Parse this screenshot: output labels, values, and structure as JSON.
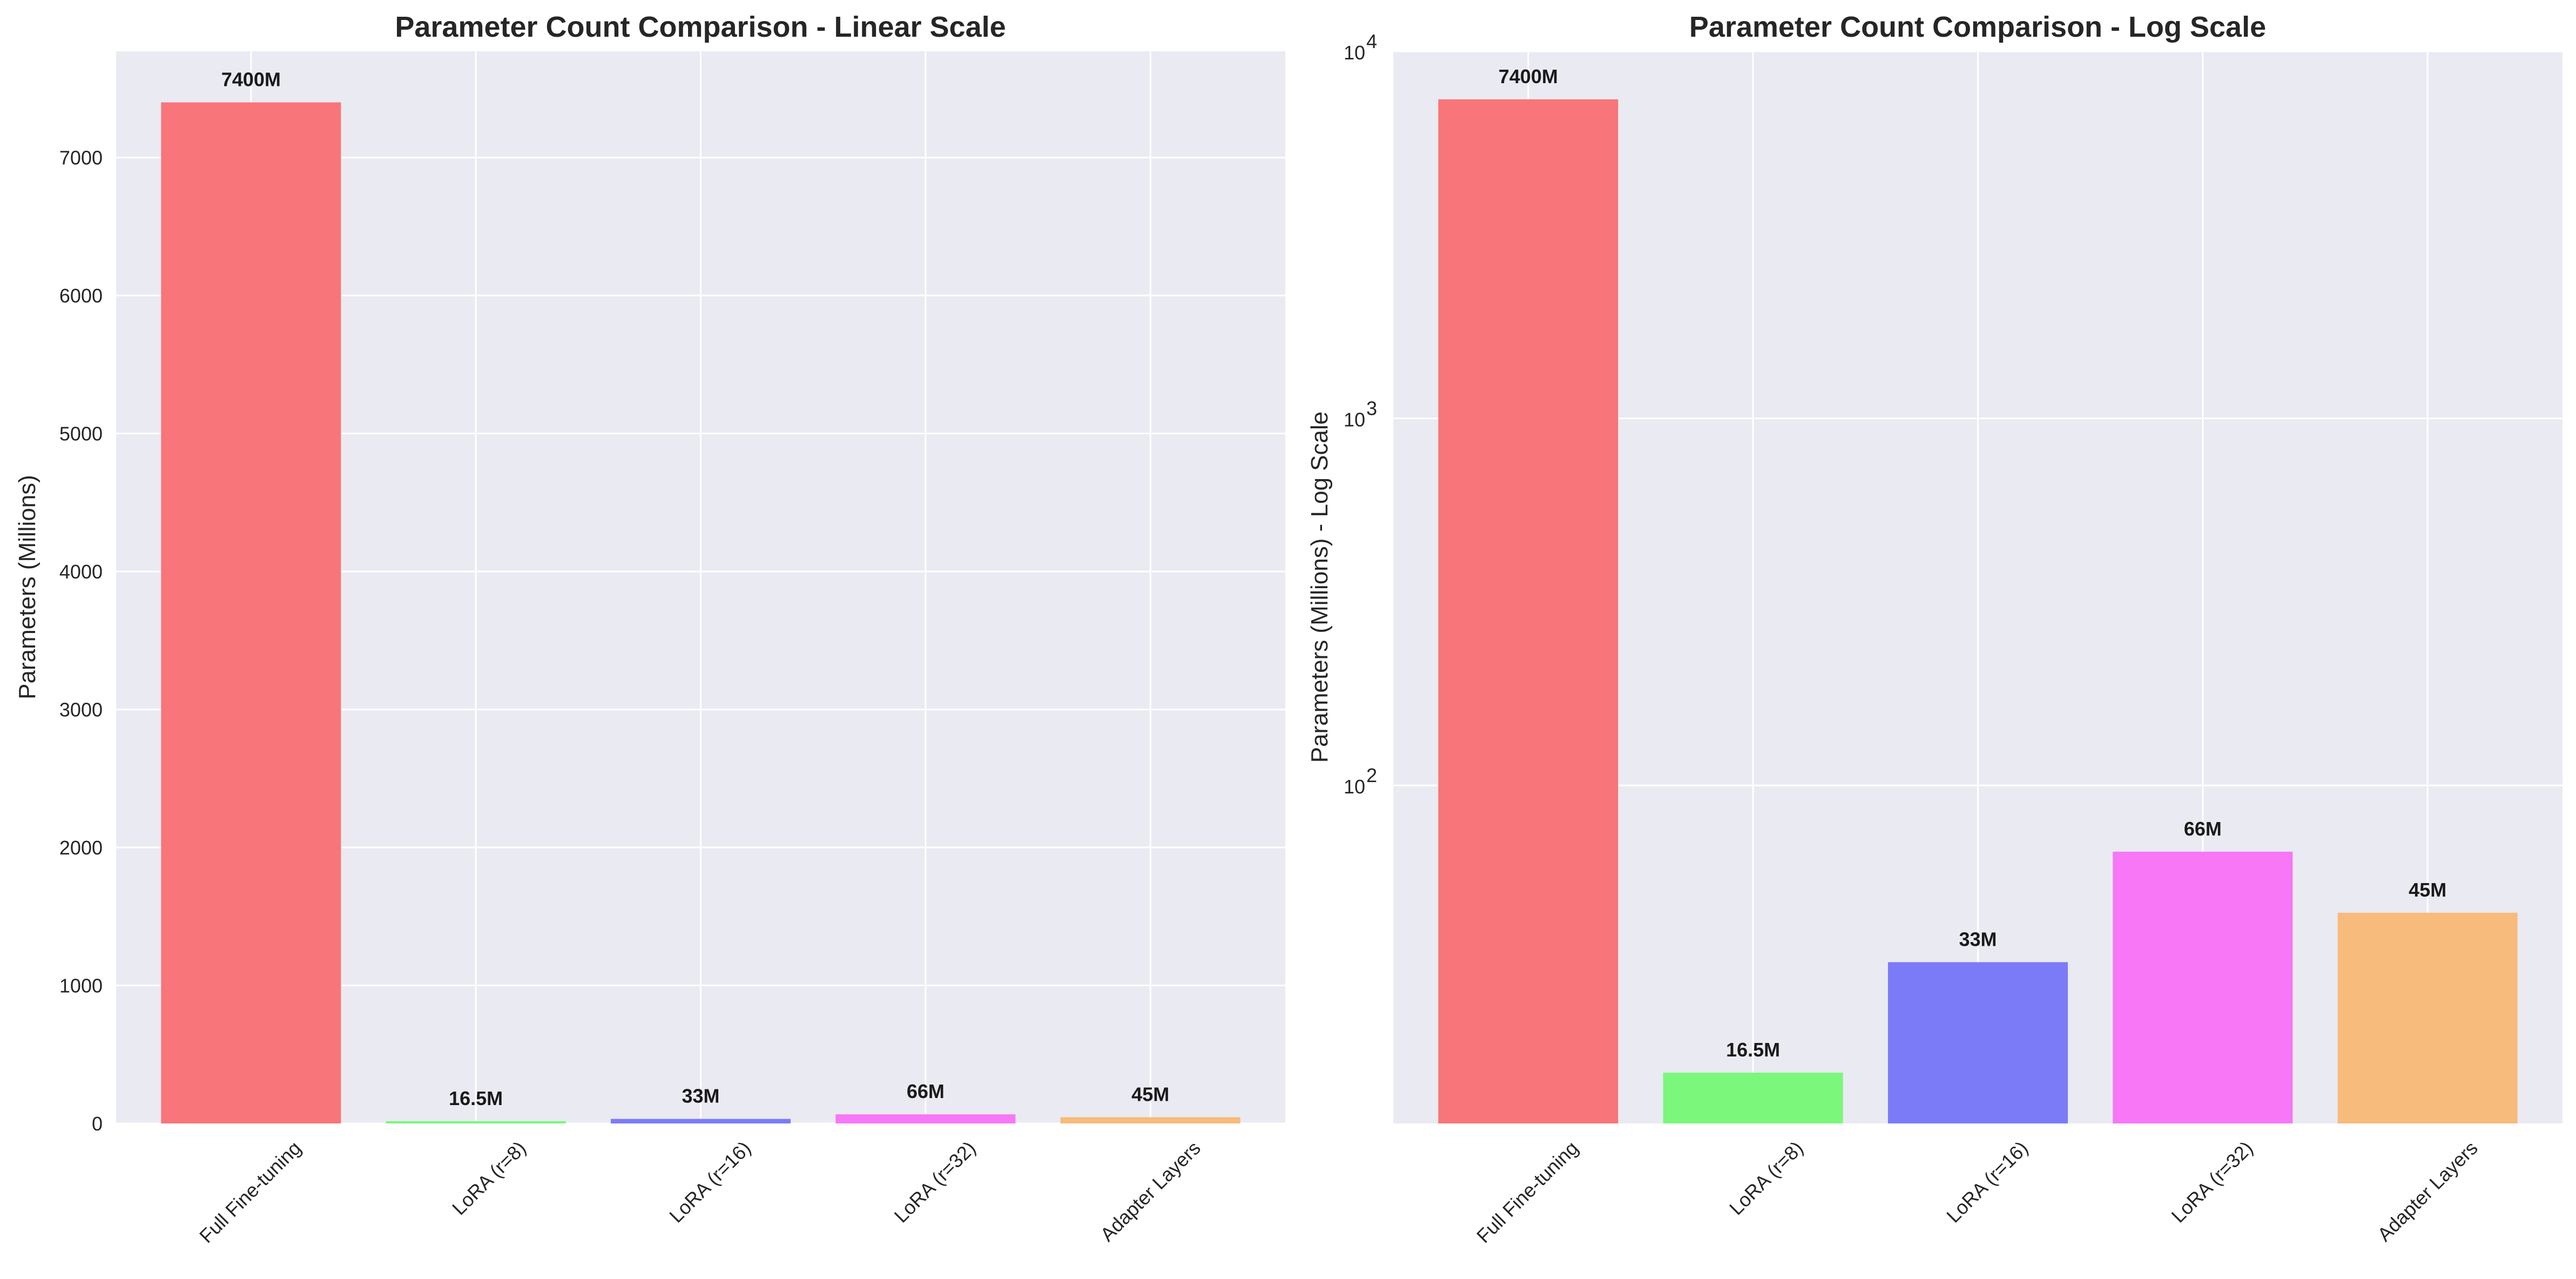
{
  "chart_data": [
    {
      "type": "bar",
      "title": "Parameter Count Comparison - Linear Scale",
      "xlabel": "",
      "ylabel": "Parameters (Millions)",
      "yscale": "linear",
      "ylim": [
        0,
        7770
      ],
      "yticks": [
        0,
        1000,
        2000,
        3000,
        4000,
        5000,
        6000,
        7000
      ],
      "ytick_labels": [
        "0",
        "1000",
        "2000",
        "3000",
        "4000",
        "5000",
        "6000",
        "7000"
      ],
      "categories": [
        "Full Fine-tuning",
        "LoRA (r=8)",
        "LoRA (r=16)",
        "LoRA (r=32)",
        "Adapter Layers"
      ],
      "values": [
        7400,
        16.5,
        33,
        66,
        45
      ],
      "value_labels": [
        "7400M",
        "16.5M",
        "33M",
        "66M",
        "45M"
      ],
      "colors": [
        "#f87579",
        "#7bf77b",
        "#7b7bf7",
        "#f777f7",
        "#f7bb7b"
      ],
      "grid": true
    },
    {
      "type": "bar",
      "title": "Parameter Count Comparison - Log Scale",
      "xlabel": "",
      "ylabel": "Parameters (Millions) - Log Scale",
      "yscale": "log",
      "ylim": [
        12,
        10000
      ],
      "yticks": [
        100,
        1000,
        10000
      ],
      "ytick_labels": [
        {
          "base": "10",
          "exp": "2"
        },
        {
          "base": "10",
          "exp": "3"
        },
        {
          "base": "10",
          "exp": "4"
        }
      ],
      "categories": [
        "Full Fine-tuning",
        "LoRA (r=8)",
        "LoRA (r=16)",
        "LoRA (r=32)",
        "Adapter Layers"
      ],
      "values": [
        7400,
        16.5,
        33,
        66,
        45
      ],
      "value_labels": [
        "7400M",
        "16.5M",
        "33M",
        "66M",
        "45M"
      ],
      "colors": [
        "#f87579",
        "#7bf77b",
        "#7b7bf7",
        "#f777f7",
        "#f7bb7b"
      ],
      "grid": true
    }
  ]
}
